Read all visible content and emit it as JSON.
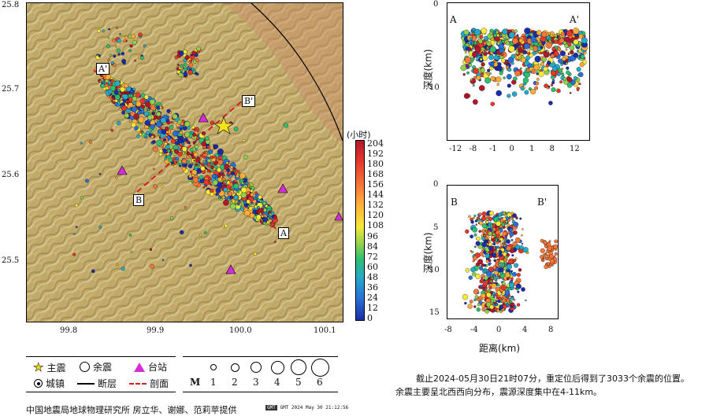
{
  "main_map": {
    "lat_ticks": [
      "25.8",
      "25.7",
      "25.6",
      "25.5"
    ],
    "lon_ticks": [
      "99.8",
      "99.9",
      "100.0",
      "100.1"
    ],
    "profile_labels": {
      "A": "A",
      "A_prime": "A'",
      "B": "B",
      "B_prime": "B'"
    }
  },
  "colorbar": {
    "title": "(小时)",
    "ticks": [
      "204",
      "192",
      "180",
      "168",
      "156",
      "144",
      "132",
      "120",
      "108",
      "96",
      "84",
      "72",
      "60",
      "48",
      "36",
      "24",
      "12",
      "0"
    ]
  },
  "legend": {
    "main_shock": "主震",
    "aftershock": "余震",
    "station": "台站",
    "town": "城镇",
    "fault": "断层",
    "profile": "剖面",
    "mag_label": "M",
    "mags": [
      "1",
      "2",
      "3",
      "4",
      "5",
      "6"
    ]
  },
  "profile_A": {
    "label_left": "A",
    "label_right": "A'",
    "y_label": "深度(km)",
    "y_ticks": [
      "0",
      "10"
    ],
    "x_ticks": [
      "-12",
      "-8",
      "-1",
      "0",
      "1",
      "8",
      "12"
    ]
  },
  "profile_B": {
    "label_left": "B",
    "label_right": "B'",
    "y_label": "深度(km)",
    "x_label": "距离(km)",
    "y_ticks": [
      "0",
      "5",
      "10",
      "15"
    ],
    "x_ticks": [
      "-8",
      "-4",
      "0",
      "4",
      "8"
    ]
  },
  "caption": {
    "line1": "截止2024-05月30日21时07分，重定位后得到了3033个余震的位置。",
    "line2": "余震主要呈北西西向分布，震源深度集中在4-11km。"
  },
  "credit": "中国地震局地球物理研究所 房立华、谢娜、范莉苹提供",
  "credit_small": "GMT 2024 May 30 21:12:56"
}
